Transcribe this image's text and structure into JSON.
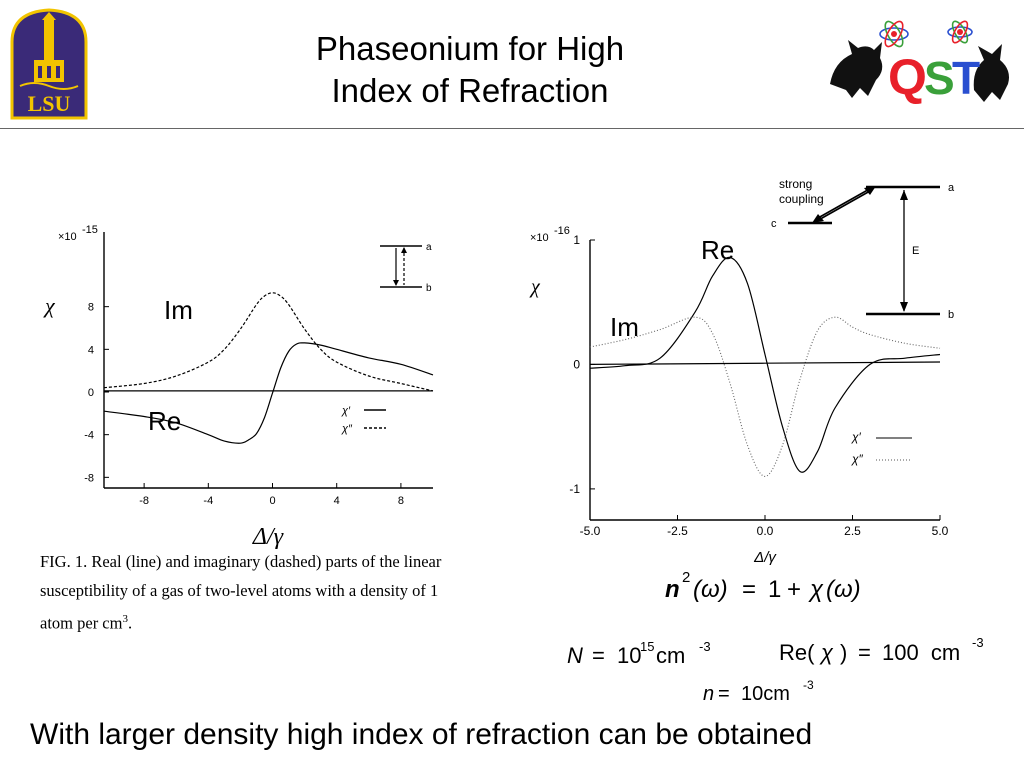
{
  "slide": {
    "title_line1": "Phaseonium for High",
    "title_line2": "Index of Refraction",
    "logos": {
      "left": {
        "text": "LSU",
        "icon": "lsu-tower-icon",
        "colors": {
          "purple": "#3a2a78",
          "gold": "#f2c400"
        }
      },
      "right": {
        "text": "QST",
        "icon": "cats-with-atoms-icon",
        "colors": {
          "red": "#e8202a",
          "green": "#3aa03a",
          "blue": "#2a4fd0",
          "gold": "#f2b400"
        }
      }
    },
    "bottom_text": "With larger density high index of refraction can be obtained"
  },
  "left_fig": {
    "overlay_im": "Im",
    "overlay_re": "Re",
    "caption_line1": "FIG. 1.  Real (line) and imaginary (dashed) parts of the linear",
    "caption_line2": "susceptibility of a gas of two-level atoms with a density of 1",
    "caption_line3_pre": "atom per cm",
    "caption_line3_sup": "3",
    "caption_line3_post": ".",
    "level_a": "a",
    "level_b": "b",
    "legend_re": "χ′",
    "legend_im": "χ″"
  },
  "right_fig": {
    "overlay_re": "Re",
    "overlay_im": "Im",
    "strong_coupling_line1": "strong",
    "strong_coupling_line2": "coupling",
    "level_a": "a",
    "level_b": "b",
    "level_c": "c",
    "energy_label": "E",
    "legend_re": "χ′",
    "legend_im": "χ″",
    "formula": {
      "n": "n",
      "sup2": "2",
      "open": "(ω)",
      "eq": "=",
      "one": "1",
      "plus": "+",
      "chi": "χ",
      "close": "(ω)"
    }
  },
  "equations": {
    "N_var": "N",
    "N_eq": "=",
    "N_val": "10",
    "N_exp": "15",
    "N_unit": "cm",
    "N_unit_exp": "-3",
    "re_label": "Re(",
    "re_chi": "χ",
    "re_close": ")",
    "re_eq": "=",
    "re_val": "100  cm",
    "re_exp": "-3",
    "n_var": "n",
    "n_eq": "=",
    "n_val": "10cm",
    "n_exp": "-3"
  },
  "chart_data": [
    {
      "type": "line",
      "title": "",
      "xlabel": "Δ/γ",
      "ylabel": "χ",
      "y_multiplier": "×10⁻¹⁵",
      "xlim": [
        -10.5,
        10
      ],
      "ylim": [
        -9,
        15
      ],
      "xticks": [
        "-8",
        "-4",
        "0",
        "4",
        "8"
      ],
      "yticks": [
        "8",
        "4",
        "0",
        "-4",
        "-8"
      ],
      "xtick_values": [
        -8,
        -4,
        0,
        4,
        8
      ],
      "ytick_values": [
        8,
        4,
        0,
        -4,
        -8
      ],
      "series": [
        {
          "name": "χ′",
          "style": "solid",
          "x": [
            -10.5,
            -8,
            -6,
            -4,
            -3,
            -2,
            -1.5,
            -1,
            -0.5,
            0,
            0.5,
            1,
            1.5,
            2,
            3,
            4,
            6,
            8,
            10
          ],
          "y": [
            -1.8,
            -2.3,
            -2.9,
            -4.0,
            -4.6,
            -4.8,
            -4.5,
            -3.9,
            -2.4,
            -0.1,
            2.2,
            3.8,
            4.5,
            4.6,
            4.4,
            4.0,
            3.2,
            2.6,
            1.6
          ]
        },
        {
          "name": "χ″",
          "style": "dashed",
          "x": [
            -10.5,
            -8,
            -6,
            -4,
            -3,
            -2,
            -1,
            -0.5,
            0,
            0.5,
            1,
            2,
            3,
            4,
            6,
            8,
            10
          ],
          "y": [
            0.4,
            0.8,
            1.5,
            2.8,
            4.0,
            5.9,
            8.2,
            9.0,
            9.3,
            9.0,
            8.2,
            5.9,
            4.0,
            2.8,
            1.5,
            0.8,
            0.1
          ]
        },
        {
          "name": "",
          "style": "solid",
          "x": [
            -10.5,
            10
          ],
          "y": [
            0.1,
            0.1
          ]
        }
      ]
    },
    {
      "type": "line",
      "title": "",
      "xlabel": "Δ/γ",
      "ylabel": "χ",
      "y_multiplier": "×10⁻¹⁶",
      "xlim": [
        -5,
        5
      ],
      "ylim": [
        -1.25,
        1
      ],
      "xticks": [
        "-5.0",
        "-2.5",
        "0.0",
        "2.5",
        "5.0"
      ],
      "yticks": [
        "1",
        "0",
        "-1"
      ],
      "xtick_values": [
        -5,
        -2.5,
        0,
        2.5,
        5
      ],
      "ytick_values": [
        1,
        0,
        -1
      ],
      "series": [
        {
          "name": "χ′",
          "style": "solid",
          "x": [
            -5,
            -4,
            -3,
            -2,
            -1.5,
            -1,
            -0.5,
            0,
            0.5,
            1,
            1.5,
            2,
            3,
            4,
            5
          ],
          "y": [
            -0.03,
            -0.01,
            0.05,
            0.42,
            0.71,
            0.86,
            0.65,
            0.08,
            -0.5,
            -0.86,
            -0.7,
            -0.35,
            0,
            0.05,
            0.08
          ]
        },
        {
          "name": "χ″",
          "style": "dotted",
          "x": [
            -5,
            -4,
            -3,
            -2,
            -1.5,
            -1,
            -0.5,
            0,
            0.5,
            1,
            1.5,
            2,
            2.5,
            3,
            4,
            5
          ],
          "y": [
            0.14,
            0.2,
            0.28,
            0.38,
            0.25,
            -0.15,
            -0.65,
            -0.9,
            -0.65,
            -0.12,
            0.27,
            0.38,
            0.3,
            0.24,
            0.17,
            0.13
          ]
        },
        {
          "name": "",
          "style": "solid",
          "x": [
            -5,
            5
          ],
          "y": [
            0,
            0.02
          ]
        }
      ]
    }
  ]
}
